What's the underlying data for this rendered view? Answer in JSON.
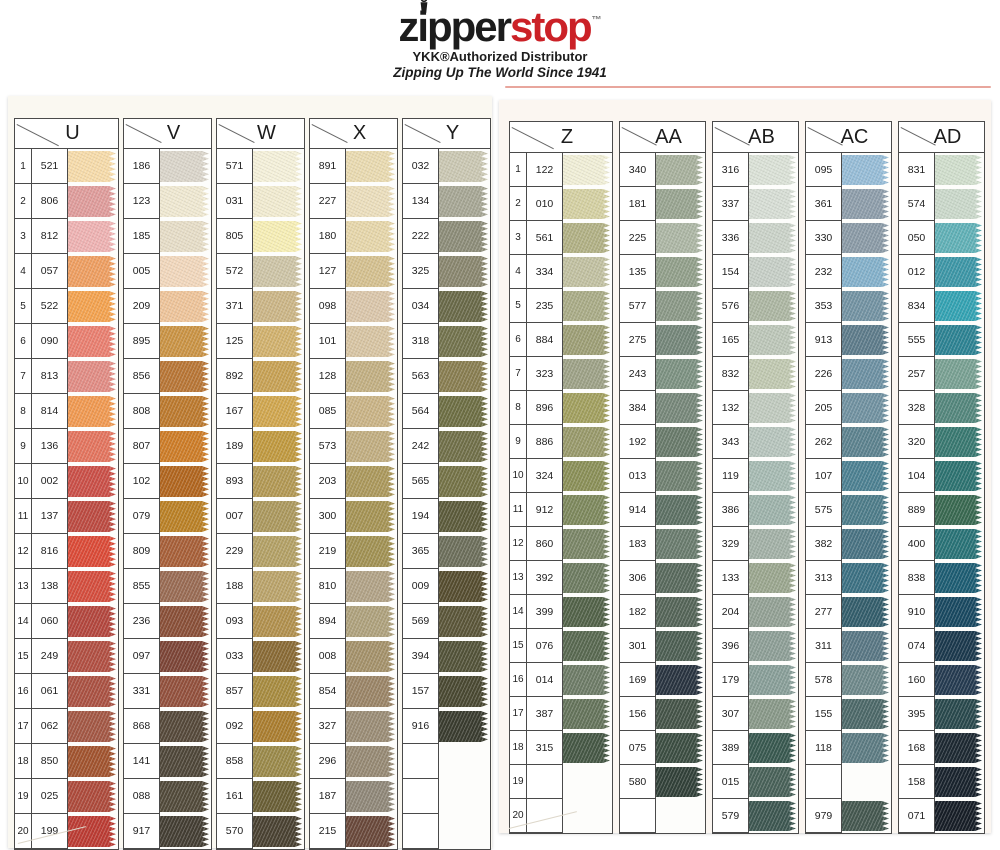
{
  "brand": {
    "word_black": "zipper",
    "word_red": "stop",
    "trademark": "™",
    "subtitle": "YKK®Authorized Distributor",
    "tagline": "Zipping Up The World Since 1941",
    "brand_red": "#CB2127",
    "text_black": "#1C1C1C"
  },
  "row_numbers": [
    1,
    2,
    3,
    4,
    5,
    6,
    7,
    8,
    9,
    10,
    11,
    12,
    13,
    14,
    15,
    16,
    17,
    18,
    19,
    20
  ],
  "pages": [
    {
      "id": "left",
      "columns": [
        {
          "letter": "U",
          "numbered": true,
          "entries": [
            {
              "code": "521",
              "color": "#F7DCAB"
            },
            {
              "code": "806",
              "color": "#E09D9C"
            },
            {
              "code": "812",
              "color": "#EFB3B3"
            },
            {
              "code": "057",
              "color": "#EF9F62"
            },
            {
              "code": "522",
              "color": "#F4A350"
            },
            {
              "code": "090",
              "color": "#EA8071"
            },
            {
              "code": "813",
              "color": "#E28D85"
            },
            {
              "code": "814",
              "color": "#F19A52"
            },
            {
              "code": "136",
              "color": "#E4755F"
            },
            {
              "code": "002",
              "color": "#CB5048"
            },
            {
              "code": "137",
              "color": "#BD4B42"
            },
            {
              "code": "816",
              "color": "#DC4B38"
            },
            {
              "code": "138",
              "color": "#D54E3E"
            },
            {
              "code": "060",
              "color": "#B4473E"
            },
            {
              "code": "249",
              "color": "#B25043"
            },
            {
              "code": "061",
              "color": "#AB5243"
            },
            {
              "code": "062",
              "color": "#A45845"
            },
            {
              "code": "850",
              "color": "#A2542F"
            },
            {
              "code": "025",
              "color": "#AE4B3C"
            },
            {
              "code": "199",
              "color": "#BC3C34"
            }
          ]
        },
        {
          "letter": "V",
          "numbered": false,
          "entries": [
            {
              "code": "186",
              "color": "#DBD6CB"
            },
            {
              "code": "123",
              "color": "#F0E9D2"
            },
            {
              "code": "185",
              "color": "#E7DEC8"
            },
            {
              "code": "005",
              "color": "#F2D8BD"
            },
            {
              "code": "209",
              "color": "#EFC59B"
            },
            {
              "code": "895",
              "color": "#CB9445"
            },
            {
              "code": "856",
              "color": "#B97636"
            },
            {
              "code": "808",
              "color": "#BD7A2E"
            },
            {
              "code": "807",
              "color": "#CE7D28"
            },
            {
              "code": "102",
              "color": "#B2661F"
            },
            {
              "code": "079",
              "color": "#BB8126"
            },
            {
              "code": "809",
              "color": "#A86039"
            },
            {
              "code": "855",
              "color": "#9A6C54"
            },
            {
              "code": "236",
              "color": "#8A5038"
            },
            {
              "code": "097",
              "color": "#7D4537"
            },
            {
              "code": "331",
              "color": "#93513D"
            },
            {
              "code": "868",
              "color": "#56493A"
            },
            {
              "code": "141",
              "color": "#4F4739"
            },
            {
              "code": "088",
              "color": "#524A3A"
            },
            {
              "code": "917",
              "color": "#443E33"
            }
          ]
        },
        {
          "letter": "W",
          "numbered": false,
          "entries": [
            {
              "code": "571",
              "color": "#F5F1DA"
            },
            {
              "code": "031",
              "color": "#F2ECD1"
            },
            {
              "code": "805",
              "color": "#F7EFB6"
            },
            {
              "code": "572",
              "color": "#CEC5A7"
            },
            {
              "code": "371",
              "color": "#CCB687"
            },
            {
              "code": "125",
              "color": "#D2B26E"
            },
            {
              "code": "892",
              "color": "#C8A255"
            },
            {
              "code": "167",
              "color": "#D1A74F"
            },
            {
              "code": "189",
              "color": "#C19A40"
            },
            {
              "code": "893",
              "color": "#B39954"
            },
            {
              "code": "007",
              "color": "#AC995E"
            },
            {
              "code": "229",
              "color": "#B4A166"
            },
            {
              "code": "188",
              "color": "#BBA46B"
            },
            {
              "code": "093",
              "color": "#B2914E"
            },
            {
              "code": "033",
              "color": "#8A6B36"
            },
            {
              "code": "857",
              "color": "#A88C40"
            },
            {
              "code": "092",
              "color": "#AB7E30"
            },
            {
              "code": "858",
              "color": "#9B8A4A"
            },
            {
              "code": "161",
              "color": "#6A5F36"
            },
            {
              "code": "570",
              "color": "#4A4232"
            }
          ]
        },
        {
          "letter": "X",
          "numbered": false,
          "entries": [
            {
              "code": "891",
              "color": "#EADBB1"
            },
            {
              "code": "227",
              "color": "#ECDFBD"
            },
            {
              "code": "180",
              "color": "#E7D7AB"
            },
            {
              "code": "127",
              "color": "#D5C190"
            },
            {
              "code": "098",
              "color": "#DBC7AB"
            },
            {
              "code": "101",
              "color": "#D8C5A3"
            },
            {
              "code": "128",
              "color": "#C3B083"
            },
            {
              "code": "085",
              "color": "#CAB486"
            },
            {
              "code": "573",
              "color": "#C2AE81"
            },
            {
              "code": "203",
              "color": "#AC995C"
            },
            {
              "code": "300",
              "color": "#A69455"
            },
            {
              "code": "219",
              "color": "#A29254"
            },
            {
              "code": "810",
              "color": "#B2A387"
            },
            {
              "code": "894",
              "color": "#AFA27D"
            },
            {
              "code": "008",
              "color": "#A5926B"
            },
            {
              "code": "854",
              "color": "#9B8567"
            },
            {
              "code": "327",
              "color": "#9B8D76"
            },
            {
              "code": "296",
              "color": "#978A74"
            },
            {
              "code": "187",
              "color": "#908879"
            },
            {
              "code": "215",
              "color": "#6A493B"
            }
          ]
        },
        {
          "letter": "Y",
          "numbered": false,
          "entries": [
            {
              "code": "032",
              "color": "#CBC8B3"
            },
            {
              "code": "134",
              "color": "#A7A795"
            },
            {
              "code": "222",
              "color": "#8D8D79"
            },
            {
              "code": "325",
              "color": "#8A876F"
            },
            {
              "code": "034",
              "color": "#6A6A49"
            },
            {
              "code": "318",
              "color": "#73734D"
            },
            {
              "code": "563",
              "color": "#897E51"
            },
            {
              "code": "564",
              "color": "#6E6F44"
            },
            {
              "code": "242",
              "color": "#717049"
            },
            {
              "code": "565",
              "color": "#757347"
            },
            {
              "code": "194",
              "color": "#5C5B3B"
            },
            {
              "code": "365",
              "color": "#6D6F5B"
            },
            {
              "code": "009",
              "color": "#564D2F"
            },
            {
              "code": "569",
              "color": "#5B5639"
            },
            {
              "code": "394",
              "color": "#535339"
            },
            {
              "code": "157",
              "color": "#4A4932"
            },
            {
              "code": "916",
              "color": "#3A3C2F"
            },
            {
              "code": "",
              "color": ""
            },
            {
              "code": "",
              "color": ""
            },
            {
              "code": "",
              "color": ""
            }
          ]
        }
      ]
    },
    {
      "id": "right",
      "columns": [
        {
          "letter": "Z",
          "numbered": true,
          "entries": [
            {
              "code": "122",
              "color": "#F1EFD7"
            },
            {
              "code": "010",
              "color": "#D5D1A3"
            },
            {
              "code": "561",
              "color": "#B2B185"
            },
            {
              "code": "334",
              "color": "#C2C1A1"
            },
            {
              "code": "235",
              "color": "#AAAC87"
            },
            {
              "code": "884",
              "color": "#9E9F76"
            },
            {
              "code": "323",
              "color": "#9EA287"
            },
            {
              "code": "896",
              "color": "#A2A05F"
            },
            {
              "code": "886",
              "color": "#999A6B"
            },
            {
              "code": "324",
              "color": "#8B9058"
            },
            {
              "code": "912",
              "color": "#7E895D"
            },
            {
              "code": "860",
              "color": "#7B8667"
            },
            {
              "code": "392",
              "color": "#6E7C61"
            },
            {
              "code": "399",
              "color": "#536349"
            },
            {
              "code": "076",
              "color": "#596951"
            },
            {
              "code": "014",
              "color": "#6E7C67"
            },
            {
              "code": "387",
              "color": "#65745B"
            },
            {
              "code": "315",
              "color": "#465845"
            },
            {
              "code": "",
              "color": ""
            },
            {
              "code": "",
              "color": ""
            }
          ]
        },
        {
          "letter": "AA",
          "numbered": false,
          "entries": [
            {
              "code": "340",
              "color": "#A8B19D"
            },
            {
              "code": "181",
              "color": "#99A591"
            },
            {
              "code": "225",
              "color": "#ADB7A5"
            },
            {
              "code": "135",
              "color": "#92A08B"
            },
            {
              "code": "577",
              "color": "#8B9987"
            },
            {
              "code": "275",
              "color": "#75877A"
            },
            {
              "code": "243",
              "color": "#7D9282"
            },
            {
              "code": "384",
              "color": "#77887A"
            },
            {
              "code": "192",
              "color": "#697B6B"
            },
            {
              "code": "013",
              "color": "#708171"
            },
            {
              "code": "914",
              "color": "#5D7164"
            },
            {
              "code": "183",
              "color": "#6A7C6E"
            },
            {
              "code": "306",
              "color": "#596A5D"
            },
            {
              "code": "182",
              "color": "#556558"
            },
            {
              "code": "301",
              "color": "#4D5F53"
            },
            {
              "code": "169",
              "color": "#293440"
            },
            {
              "code": "156",
              "color": "#455448"
            },
            {
              "code": "075",
              "color": "#3C4E42"
            },
            {
              "code": "580",
              "color": "#324139"
            },
            {
              "code": "",
              "color": ""
            }
          ]
        },
        {
          "letter": "AB",
          "numbered": false,
          "entries": [
            {
              "code": "316",
              "color": "#DBE2D7"
            },
            {
              "code": "337",
              "color": "#D7DED5"
            },
            {
              "code": "336",
              "color": "#CBD3C9"
            },
            {
              "code": "154",
              "color": "#C7CFC7"
            },
            {
              "code": "576",
              "color": "#ADB7A3"
            },
            {
              "code": "165",
              "color": "#BDC7B9"
            },
            {
              "code": "832",
              "color": "#C1C9B1"
            },
            {
              "code": "132",
              "color": "#C1CBBF"
            },
            {
              "code": "343",
              "color": "#B7C5BD"
            },
            {
              "code": "119",
              "color": "#A7BBB3"
            },
            {
              "code": "386",
              "color": "#9EB3AB"
            },
            {
              "code": "329",
              "color": "#A3B1A7"
            },
            {
              "code": "133",
              "color": "#9BA78F"
            },
            {
              "code": "204",
              "color": "#93A195"
            },
            {
              "code": "396",
              "color": "#8E9F97"
            },
            {
              "code": "179",
              "color": "#899F99"
            },
            {
              "code": "307",
              "color": "#899989"
            },
            {
              "code": "389",
              "color": "#395950"
            },
            {
              "code": "015",
              "color": "#496259"
            },
            {
              "code": "579",
              "color": "#3D5751"
            }
          ]
        },
        {
          "letter": "AC",
          "numbered": false,
          "entries": [
            {
              "code": "095",
              "color": "#97BDD7"
            },
            {
              "code": "361",
              "color": "#8E9EAB"
            },
            {
              "code": "330",
              "color": "#8B9BA7"
            },
            {
              "code": "232",
              "color": "#84B1CB"
            },
            {
              "code": "353",
              "color": "#7393A3"
            },
            {
              "code": "913",
              "color": "#5E7C8B"
            },
            {
              "code": "226",
              "color": "#6D91A3"
            },
            {
              "code": "205",
              "color": "#7192A1"
            },
            {
              "code": "262",
              "color": "#5D838F"
            },
            {
              "code": "107",
              "color": "#4D8192"
            },
            {
              "code": "575",
              "color": "#4E7D8A"
            },
            {
              "code": "382",
              "color": "#497383"
            },
            {
              "code": "313",
              "color": "#3C7183"
            },
            {
              "code": "277",
              "color": "#345E6C"
            },
            {
              "code": "311",
              "color": "#597784"
            },
            {
              "code": "578",
              "color": "#6F898B"
            },
            {
              "code": "155",
              "color": "#4D6969"
            },
            {
              "code": "118",
              "color": "#5D7C83"
            },
            {
              "code": "",
              "color": ""
            },
            {
              "code": "979",
              "color": "#455850"
            }
          ]
        },
        {
          "letter": "AD",
          "numbered": false,
          "entries": [
            {
              "code": "831",
              "color": "#D1DFCD"
            },
            {
              "code": "574",
              "color": "#CBD9CB"
            },
            {
              "code": "050",
              "color": "#61B1B7"
            },
            {
              "code": "012",
              "color": "#3D97A7"
            },
            {
              "code": "834",
              "color": "#34A3B3"
            },
            {
              "code": "555",
              "color": "#2D8393"
            },
            {
              "code": "257",
              "color": "#79A193"
            },
            {
              "code": "328",
              "color": "#54877D"
            },
            {
              "code": "320",
              "color": "#397971"
            },
            {
              "code": "104",
              "color": "#2D7371"
            },
            {
              "code": "889",
              "color": "#396951"
            },
            {
              "code": "400",
              "color": "#297377"
            },
            {
              "code": "838",
              "color": "#1D5D73"
            },
            {
              "code": "910",
              "color": "#194961"
            },
            {
              "code": "074",
              "color": "#1B394D"
            },
            {
              "code": "160",
              "color": "#253B51"
            },
            {
              "code": "395",
              "color": "#29494D"
            },
            {
              "code": "168",
              "color": "#1D2932"
            },
            {
              "code": "158",
              "color": "#19232D"
            },
            {
              "code": "071",
              "color": "#171E27"
            }
          ]
        }
      ]
    }
  ]
}
